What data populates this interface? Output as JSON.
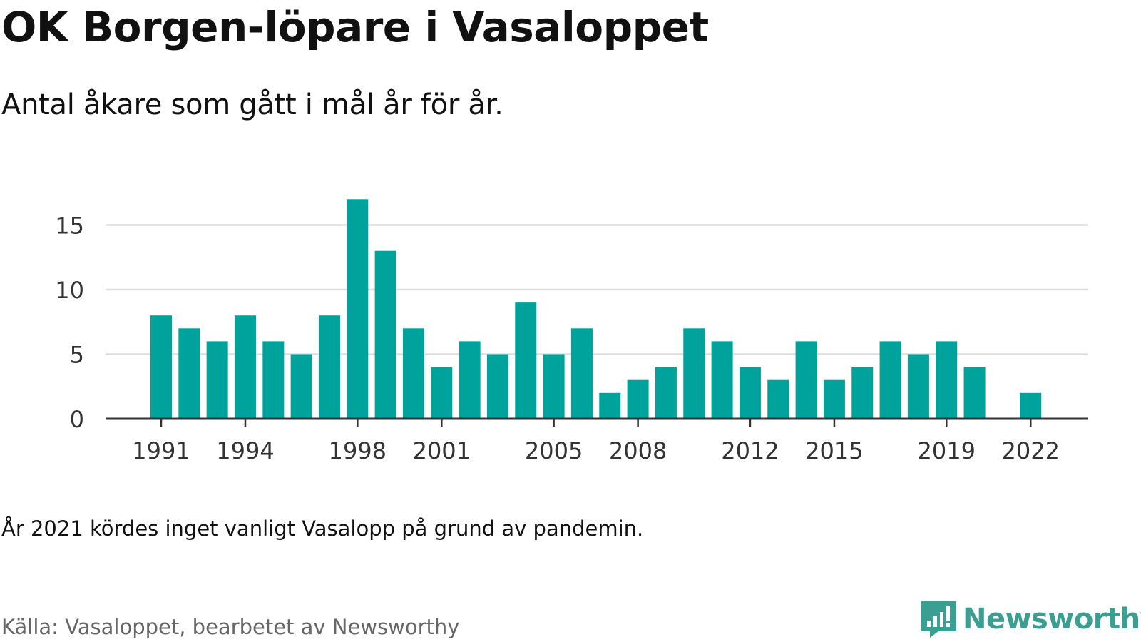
{
  "header": {
    "title": "OK Borgen-löpare i Vasaloppet",
    "subtitle": "Antal åkare som gått i mål år för år."
  },
  "footer": {
    "note": "År 2021 kördes inget vanligt Vasalopp på grund av pandemin.",
    "source": "Källa: Vasaloppet, bearbetet av Newsworthy",
    "brand": "Newsworthy",
    "brand_icon": "bar-chart-speech-bubble-icon"
  },
  "colors": {
    "bar": "#00a39b",
    "grid": "#dddddd",
    "axis": "#333333",
    "brand": "#3a9e90"
  },
  "chart_data": {
    "type": "bar",
    "x": [
      1991,
      1992,
      1993,
      1994,
      1995,
      1996,
      1997,
      1998,
      1999,
      2000,
      2001,
      2002,
      2003,
      2004,
      2005,
      2006,
      2007,
      2008,
      2009,
      2010,
      2011,
      2012,
      2013,
      2014,
      2015,
      2016,
      2017,
      2018,
      2019,
      2020,
      2021,
      2022
    ],
    "values": [
      8,
      7,
      6,
      8,
      6,
      5,
      8,
      17,
      13,
      7,
      4,
      6,
      5,
      9,
      5,
      7,
      2,
      3,
      4,
      7,
      6,
      4,
      3,
      6,
      3,
      4,
      6,
      5,
      6,
      4,
      null,
      2
    ],
    "x_ticks": [
      "1991",
      "1994",
      "1998",
      "2001",
      "2005",
      "2008",
      "2012",
      "2015",
      "2019",
      "2022"
    ],
    "y_ticks": [
      "0",
      "5",
      "10",
      "15"
    ],
    "ylim": [
      0,
      17
    ],
    "grid": true,
    "legend": "none"
  }
}
